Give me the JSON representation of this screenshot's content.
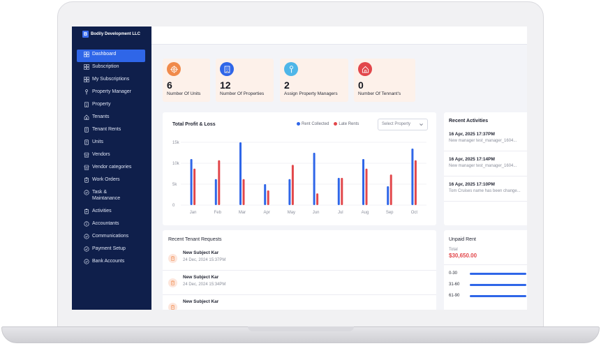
{
  "brand": {
    "logo_letter": "B",
    "name": "Bodily Development LLC"
  },
  "sidebar": {
    "items": [
      {
        "label": "Dashboard",
        "icon": "grid-icon",
        "active": true
      },
      {
        "label": "Subscription",
        "icon": "grid-icon"
      },
      {
        "label": "My Subscriptions",
        "icon": "grid-icon"
      },
      {
        "label": "Property Manager",
        "icon": "person-icon"
      },
      {
        "label": "Property",
        "icon": "building-icon"
      },
      {
        "label": "Tenants",
        "icon": "home-icon"
      },
      {
        "label": "Tenant Rents",
        "icon": "doc-icon"
      },
      {
        "label": "Units",
        "icon": "doc-icon"
      },
      {
        "label": "Vendors",
        "icon": "store-icon"
      },
      {
        "label": "Vendor categories",
        "icon": "store-icon"
      },
      {
        "label": "Work Orders",
        "icon": "clipboard-icon"
      },
      {
        "label": "Task & Maintanance",
        "icon": "check-circle-icon"
      },
      {
        "label": "Activities",
        "icon": "clipboard-icon"
      },
      {
        "label": "Accountants",
        "icon": "info-circle-icon"
      },
      {
        "label": "Communications",
        "icon": "check-circle-icon"
      },
      {
        "label": "Payment Setup",
        "icon": "check-circle-icon"
      },
      {
        "label": "Bank Accounts",
        "icon": "check-circle-icon"
      }
    ]
  },
  "stats": [
    {
      "value": "6",
      "label": "Number Of Units",
      "icon": "target-icon",
      "color": "#f08a4b"
    },
    {
      "value": "12",
      "label": "Number Of Properties",
      "icon": "building-icon",
      "color": "#2f66e8"
    },
    {
      "value": "2",
      "label": "Assign Property Managers",
      "icon": "person-icon",
      "color": "#4fb6e8"
    },
    {
      "value": "0",
      "label": "Number Of Tennant's",
      "icon": "home-icon",
      "color": "#e2474b"
    }
  ],
  "profit_chart": {
    "title": "Total Profit & Loss",
    "select_placeholder": "Select Property"
  },
  "chart_data": {
    "type": "bar",
    "categories": [
      "Jan",
      "Feb",
      "Mar",
      "Apr",
      "May",
      "Jun",
      "Jul",
      "Aug",
      "Sep",
      "Oct"
    ],
    "series": [
      {
        "name": "Rent Collected",
        "color": "#2f66e8",
        "values": [
          11000,
          6200,
          15000,
          5000,
          6200,
          12500,
          6500,
          11000,
          4500,
          13500
        ]
      },
      {
        "name": "Late Rents",
        "color": "#e2474b",
        "values": [
          8700,
          10700,
          6200,
          3500,
          9600,
          2800,
          6500,
          8700,
          7300,
          10700
        ]
      }
    ],
    "y_ticks": [
      "15k",
      "10k",
      "5k",
      "0"
    ],
    "ylim": [
      0,
      15000
    ]
  },
  "recent_activities": {
    "title": "Recent Activities",
    "items": [
      {
        "date": "16 Apr, 2025 17:37PM",
        "text": "New manager test_manager_1604..."
      },
      {
        "date": "16 Apr, 2025 17:14PM",
        "text": "New manager test_manager_1604..."
      },
      {
        "date": "16 Apr, 2025 17:10PM",
        "text": "Tom Cruises name has been change..."
      }
    ]
  },
  "tenant_requests": {
    "title": "Recent Tenant Requests",
    "items": [
      {
        "subject": "New Subject Kar",
        "date": "24 Dec, 2024 15:37PM"
      },
      {
        "subject": "New Subject Kar",
        "date": "24 Dec, 2024 15:34PM"
      },
      {
        "subject": "New Subject Kar",
        "date": ""
      }
    ]
  },
  "unpaid_rent": {
    "title": "Unpaid Rent",
    "total_label": "Total",
    "total": "$30,650.00",
    "buckets": [
      {
        "label": "0-30",
        "fraction": 1.0
      },
      {
        "label": "31-60",
        "fraction": 1.0
      },
      {
        "label": "61-90",
        "fraction": 1.0
      }
    ]
  }
}
